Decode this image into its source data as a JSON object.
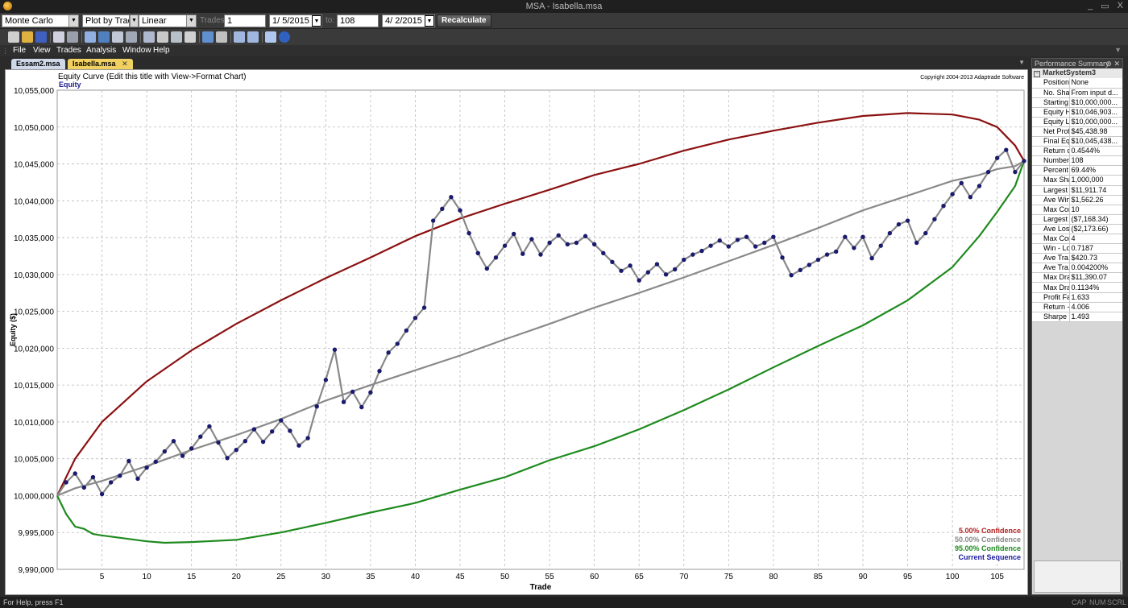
{
  "window": {
    "title": "MSA - Isabella.msa"
  },
  "toolbar": {
    "analysis_type": "Monte Carlo",
    "plot_mode": "Plot by Trade",
    "scale": "Linear",
    "trades_label": "Trades:",
    "trades_from": "1",
    "date_from": "1/ 5/2015",
    "to_label": "to:",
    "trades_to": "108",
    "date_to": "4/ 2/2015",
    "recalculate_label": "Recalculate"
  },
  "menu": [
    "File",
    "View",
    "Trades",
    "Analysis",
    "Window",
    "Help"
  ],
  "tabs": [
    {
      "label": "Essam2.msa",
      "active": false
    },
    {
      "label": "Isabella.msa",
      "active": true
    }
  ],
  "panel": {
    "title": "Performance Summary",
    "group": "MarketSystem3",
    "rows": [
      {
        "name": "Position ...",
        "value": "None"
      },
      {
        "name": "No. Shar...",
        "value": "From input d..."
      },
      {
        "name": "Starting ...",
        "value": "$10,000,000..."
      },
      {
        "name": "Equity Hi...",
        "value": "$10,046,903..."
      },
      {
        "name": "Equity L...",
        "value": "$10,000,000..."
      },
      {
        "name": "Net Profit:",
        "value": "$45,438.98"
      },
      {
        "name": "Final Eq...",
        "value": "$10,045,438..."
      },
      {
        "name": "Return o...",
        "value": "0.4544%"
      },
      {
        "name": "Number ...",
        "value": "108"
      },
      {
        "name": "Percent ...",
        "value": "69.44%"
      },
      {
        "name": "Max Sha...",
        "value": "1,000,000"
      },
      {
        "name": "Largest ...",
        "value": "$11,911.74"
      },
      {
        "name": "Ave Win:",
        "value": "$1,562.26"
      },
      {
        "name": "Max Con...",
        "value": "10"
      },
      {
        "name": "Largest ...",
        "value": "($7,168.34)"
      },
      {
        "name": "Ave Loss:",
        "value": "($2,173.66)"
      },
      {
        "name": "Max Con...",
        "value": "4"
      },
      {
        "name": "Win - Lo...",
        "value": "0.7187"
      },
      {
        "name": "Ave Tra...",
        "value": "$420.73"
      },
      {
        "name": "Ave Tra...",
        "value": "0.004200%"
      },
      {
        "name": "Max Dra...",
        "value": "$11,390.07"
      },
      {
        "name": "Max Dra...",
        "value": "0.1134%"
      },
      {
        "name": "Profit Fa...",
        "value": "1.633"
      },
      {
        "name": "Return - ...",
        "value": "4.006"
      },
      {
        "name": "Sharpe ...",
        "value": "1.493"
      }
    ]
  },
  "status": {
    "help": "For Help, press F1",
    "indicators": [
      "CAP",
      "NUM",
      "SCRL"
    ]
  },
  "chart_data": {
    "type": "line",
    "title": "Equity Curve (Edit this title with View->Format Chart)",
    "subtitle": "Equity",
    "copyright": "Copyright 2004-2013 Adaptrade Software",
    "xlabel": "Trade",
    "ylabel": "Equity ($)",
    "xlim": [
      0,
      108
    ],
    "ylim": [
      9990000,
      10055000
    ],
    "xticks": [
      5,
      10,
      15,
      20,
      25,
      30,
      35,
      40,
      45,
      50,
      55,
      60,
      65,
      70,
      75,
      80,
      85,
      90,
      95,
      100,
      105
    ],
    "yticks": [
      9990000,
      9995000,
      10000000,
      10005000,
      10010000,
      10015000,
      10020000,
      10025000,
      10030000,
      10035000,
      10040000,
      10045000,
      10050000,
      10055000
    ],
    "grid": true,
    "legend_position": "bottom-right",
    "series": [
      {
        "name": "5.00% Confidence",
        "color": "#8b1111",
        "markers": false,
        "x": [
          0,
          2,
          5,
          10,
          15,
          20,
          25,
          30,
          35,
          40,
          45,
          50,
          55,
          60,
          65,
          70,
          75,
          80,
          85,
          90,
          95,
          100,
          103,
          105,
          107,
          108
        ],
        "y": [
          10000000,
          10005000,
          10010000,
          10015500,
          10019700,
          10023300,
          10026500,
          10029500,
          10032300,
          10035200,
          10037600,
          10039600,
          10041500,
          10043500,
          10045000,
          10046800,
          10048300,
          10049500,
          10050600,
          10051500,
          10051900,
          10051700,
          10051000,
          10050000,
          10047500,
          10045400
        ]
      },
      {
        "name": "50.00% Confidence",
        "color": "#8a8a8a",
        "markers": false,
        "x": [
          0,
          2,
          5,
          10,
          15,
          20,
          25,
          30,
          35,
          40,
          45,
          50,
          55,
          60,
          65,
          70,
          75,
          80,
          85,
          90,
          95,
          100,
          103,
          105,
          107,
          108
        ],
        "y": [
          10000000,
          10001000,
          10002000,
          10004000,
          10006200,
          10008200,
          10010400,
          10012900,
          10015000,
          10017000,
          10019000,
          10021200,
          10023300,
          10025500,
          10027500,
          10029600,
          10031800,
          10034000,
          10036300,
          10038700,
          10040700,
          10042700,
          10043500,
          10044300,
          10044700,
          10045400
        ]
      },
      {
        "name": "95.00% Confidence",
        "color": "#1e8a1e",
        "markers": false,
        "x": [
          0,
          1,
          2,
          3,
          4,
          5,
          10,
          12,
          15,
          20,
          25,
          30,
          35,
          40,
          45,
          50,
          55,
          60,
          65,
          70,
          75,
          80,
          85,
          90,
          95,
          100,
          103,
          105,
          107,
          108
        ],
        "y": [
          10000000,
          9997500,
          9995800,
          9995500,
          9994800,
          9994600,
          9993800,
          9993600,
          9993700,
          9994000,
          9995000,
          9996300,
          9997700,
          9999000,
          10000800,
          10002500,
          10004800,
          10006700,
          10009000,
          10011600,
          10014400,
          10017400,
          10020300,
          10023100,
          10026500,
          10031000,
          10035200,
          10038500,
          10042000,
          10045400
        ]
      },
      {
        "name": "Current Sequence",
        "color": "#888888",
        "marker_color": "#1a1a6e",
        "markers": true,
        "x": [
          0,
          1,
          2,
          3,
          4,
          5,
          6,
          7,
          8,
          9,
          10,
          11,
          12,
          13,
          14,
          15,
          16,
          17,
          18,
          19,
          20,
          21,
          22,
          23,
          24,
          25,
          26,
          27,
          28,
          29,
          30,
          31,
          32,
          33,
          34,
          35,
          36,
          37,
          38,
          39,
          40,
          41,
          42,
          43,
          44,
          45,
          46,
          47,
          48,
          49,
          50,
          51,
          52,
          53,
          54,
          55,
          56,
          57,
          58,
          59,
          60,
          61,
          62,
          63,
          64,
          65,
          66,
          67,
          68,
          69,
          70,
          71,
          72,
          73,
          74,
          75,
          76,
          77,
          78,
          79,
          80,
          81,
          82,
          83,
          84,
          85,
          86,
          87,
          88,
          89,
          90,
          91,
          92,
          93,
          94,
          95,
          96,
          97,
          98,
          99,
          100,
          101,
          102,
          103,
          104,
          105,
          106,
          107,
          108
        ],
        "y": [
          10000000,
          10001800,
          10003000,
          10001100,
          10002500,
          10000200,
          10001800,
          10002700,
          10004700,
          10002300,
          10003800,
          10004600,
          10006000,
          10007400,
          10005400,
          10006400,
          10008000,
          10009400,
          10007200,
          10005100,
          10006200,
          10007400,
          10009000,
          10007300,
          10008700,
          10010200,
          10008800,
          10006800,
          10007800,
          10012100,
          10015700,
          10019800,
          10012700,
          10014100,
          10012000,
          10014000,
          10016900,
          10019400,
          10020600,
          10022400,
          10024100,
          10025500,
          10037300,
          10038900,
          10040500,
          10038700,
          10035600,
          10032900,
          10030800,
          10032300,
          10033900,
          10035500,
          10032800,
          10034800,
          10032700,
          10034300,
          10035300,
          10034100,
          10034300,
          10035200,
          10034100,
          10032900,
          10031700,
          10030500,
          10031200,
          10029200,
          10030300,
          10031400,
          10030000,
          10030700,
          10032000,
          10032700,
          10033200,
          10033900,
          10034600,
          10033800,
          10034700,
          10035100,
          10033800,
          10034300,
          10035100,
          10032300,
          10029900,
          10030600,
          10031300,
          10032000,
          10032700,
          10033100,
          10035100,
          10033600,
          10035100,
          10032200,
          10033900,
          10035600,
          10036800,
          10037300,
          10034300,
          10035600,
          10037500,
          10039300,
          10040900,
          10042400,
          10040500,
          10042000,
          10043900,
          10045800,
          10046900,
          10043900,
          10045400
        ]
      }
    ]
  }
}
